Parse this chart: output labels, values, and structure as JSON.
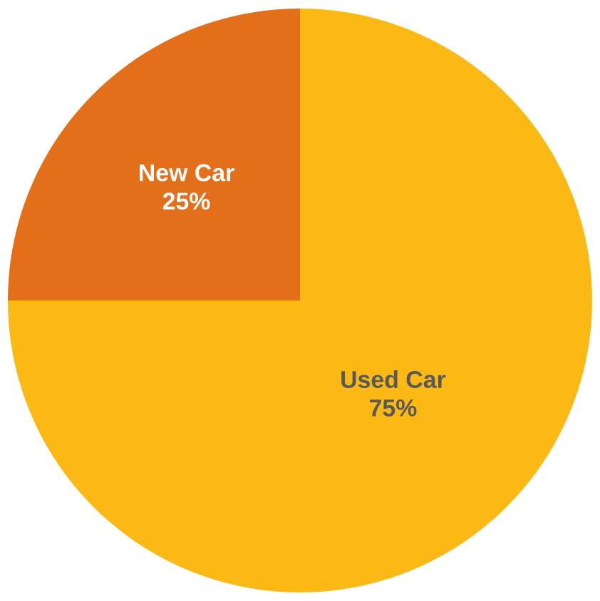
{
  "chart_data": {
    "type": "pie",
    "categories": [
      "Used Car",
      "New Car"
    ],
    "values": [
      75,
      25
    ],
    "colors": [
      "#fdb913",
      "#e36f1a"
    ],
    "value_labels": [
      "75%",
      "25%"
    ]
  }
}
